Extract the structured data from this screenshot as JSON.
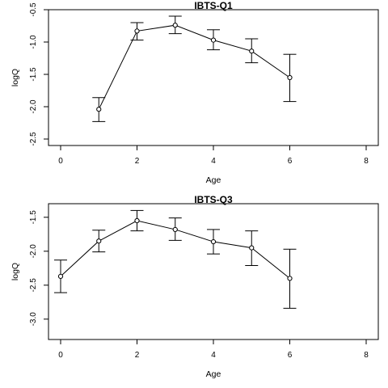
{
  "chart_data": [
    {
      "type": "line",
      "title": "IBTS-Q1",
      "xlabel": "Age",
      "ylabel": "logQ",
      "xlim": [
        0,
        8
      ],
      "ylim": [
        -2.6,
        -0.5
      ],
      "xticks": [
        "0",
        "2",
        "4",
        "6",
        "8"
      ],
      "yticks": [
        "-0.5",
        "-1.0",
        "-1.5",
        "-2.0",
        "-2.5"
      ],
      "error_bars": true,
      "series": [
        {
          "x": [
            1,
            2,
            3,
            4,
            5,
            6
          ],
          "y": [
            -2.04,
            -0.83,
            -0.74,
            -0.97,
            -1.14,
            -1.55
          ],
          "lower": [
            -2.23,
            -0.97,
            -0.87,
            -1.12,
            -1.32,
            -1.92
          ],
          "upper": [
            -1.86,
            -0.7,
            -0.6,
            -0.81,
            -0.95,
            -1.19
          ]
        }
      ]
    },
    {
      "type": "line",
      "title": "IBTS-Q3",
      "xlabel": "Age",
      "ylabel": "logQ",
      "xlim": [
        0,
        8
      ],
      "ylim": [
        -3.3,
        -1.3
      ],
      "xticks": [
        "0",
        "2",
        "4",
        "6",
        "8"
      ],
      "yticks": [
        "-1.5",
        "-2.0",
        "-2.5",
        "-3.0"
      ],
      "error_bars": true,
      "series": [
        {
          "x": [
            0,
            1,
            2,
            3,
            4,
            5,
            6
          ],
          "y": [
            -2.37,
            -1.85,
            -1.55,
            -1.68,
            -1.86,
            -1.95,
            -2.4
          ],
          "lower": [
            -2.61,
            -2.01,
            -1.7,
            -1.84,
            -2.04,
            -2.21,
            -2.84
          ],
          "upper": [
            -2.13,
            -1.69,
            -1.4,
            -1.51,
            -1.68,
            -1.7,
            -1.97
          ]
        }
      ]
    }
  ]
}
